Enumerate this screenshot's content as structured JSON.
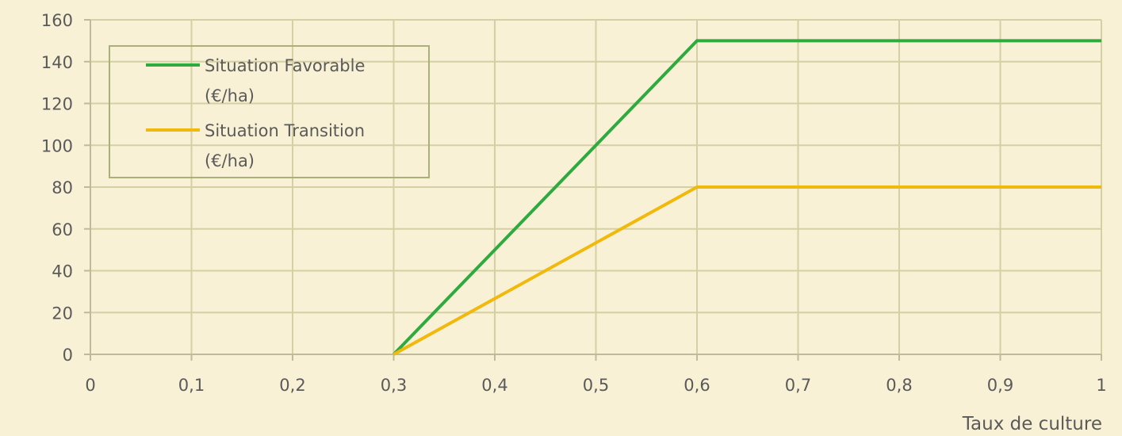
{
  "chart_data": {
    "type": "line",
    "title": "",
    "xlabel": "Taux de culture",
    "ylabel": "",
    "x_ticks": [
      "0",
      "0,1",
      "0,2",
      "0,3",
      "0,4",
      "0,5",
      "0,6",
      "0,7",
      "0,8",
      "0,9",
      "1"
    ],
    "y_ticks": [
      "0",
      "20",
      "40",
      "60",
      "80",
      "100",
      "120",
      "140",
      "160"
    ],
    "xlim": [
      0,
      1
    ],
    "ylim": [
      0,
      160
    ],
    "grid": true,
    "legend_position": "top-left",
    "series": [
      {
        "name_lines": [
          "Situation Favorable",
          "(€/ha)"
        ],
        "color": "#2eaa3f",
        "points": [
          [
            0.3,
            0
          ],
          [
            0.6,
            150
          ],
          [
            1,
            150
          ]
        ]
      },
      {
        "name_lines": [
          "Situation Transition",
          "(€/ha)"
        ],
        "color": "#f0b90b",
        "points": [
          [
            0.3,
            0
          ],
          [
            0.6,
            80
          ],
          [
            1,
            80
          ]
        ]
      }
    ],
    "colors": {
      "background": "#f8f1d6",
      "grid": "#d4d0a4",
      "axis": "#bdbb9a",
      "legend_border": "#a9b07a"
    }
  }
}
